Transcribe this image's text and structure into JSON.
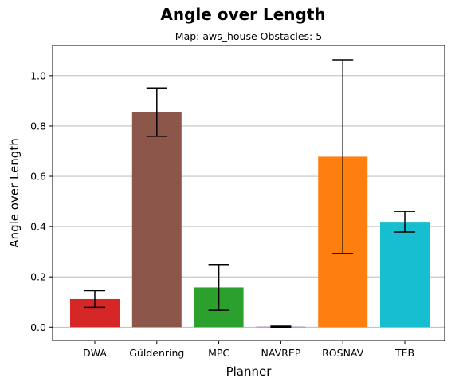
{
  "chart_data": {
    "type": "bar",
    "title": "Angle over Length",
    "subtitle": "Map: aws_house Obstacles: 5",
    "xlabel": "Planner",
    "ylabel": "Angle over Length",
    "categories": [
      "DWA",
      "Güldenring",
      "MPC",
      "NAVREP",
      "ROSNAV",
      "TEB"
    ],
    "values": [
      0.112,
      0.855,
      0.158,
      0.002,
      0.678,
      0.419
    ],
    "errors": [
      0.033,
      0.096,
      0.091,
      0.002,
      0.385,
      0.041
    ],
    "colors": [
      "#d62728",
      "#8c564b",
      "#2ca02c",
      "#9467bd",
      "#ff7f0e",
      "#17becf"
    ],
    "ylim": [
      -0.053,
      1.12
    ],
    "yticks": [
      0.0,
      0.2,
      0.4,
      0.6,
      0.8,
      1.0
    ],
    "ytick_labels": [
      "0.0",
      "0.2",
      "0.4",
      "0.6",
      "0.8",
      "1.0"
    ],
    "grid": "horizontal"
  }
}
